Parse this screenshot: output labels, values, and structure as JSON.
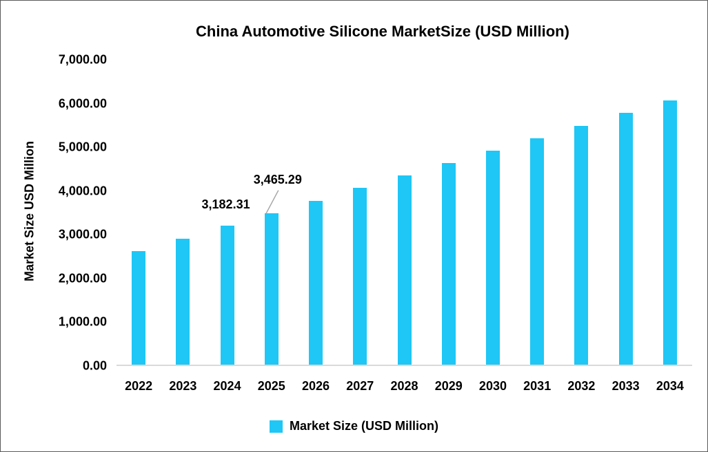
{
  "chart_data": {
    "type": "bar",
    "title": "China Automotive Silicone MarketSize (USD Million)",
    "ylabel": "Market Size USD Million",
    "xlabel": "",
    "categories": [
      "2022",
      "2023",
      "2024",
      "2025",
      "2026",
      "2027",
      "2028",
      "2029",
      "2030",
      "2031",
      "2032",
      "2033",
      "2034"
    ],
    "series": [
      {
        "name": "Market Size (USD Million)",
        "values": [
          2595,
          2885,
          3182.31,
          3465.29,
          3750,
          4040,
          4320,
          4610,
          4890,
          5175,
          5460,
          5765,
          6040
        ]
      }
    ],
    "data_labels": [
      {
        "category": "2024",
        "text": "3,182.31"
      },
      {
        "category": "2025",
        "text": "3,465.29"
      }
    ],
    "ylim": [
      0,
      7000
    ],
    "ytick_step": 1000,
    "ytick_labels_top_down": [
      "7,000.00",
      "6,000.00",
      "5,000.00",
      "4,000.00",
      "3,000.00",
      "2,000.00",
      "1,000.00",
      "0.00"
    ],
    "grid": false,
    "legend": {
      "position": "bottom-center",
      "entries": [
        {
          "label": "Market Size (USD Million)",
          "color": "#1ec7f5"
        }
      ]
    },
    "colors": {
      "bar": "#1ec7f5",
      "axis_line": "#d9d9d9",
      "leader_line": "#a6a6a6",
      "text": "#000000"
    }
  }
}
